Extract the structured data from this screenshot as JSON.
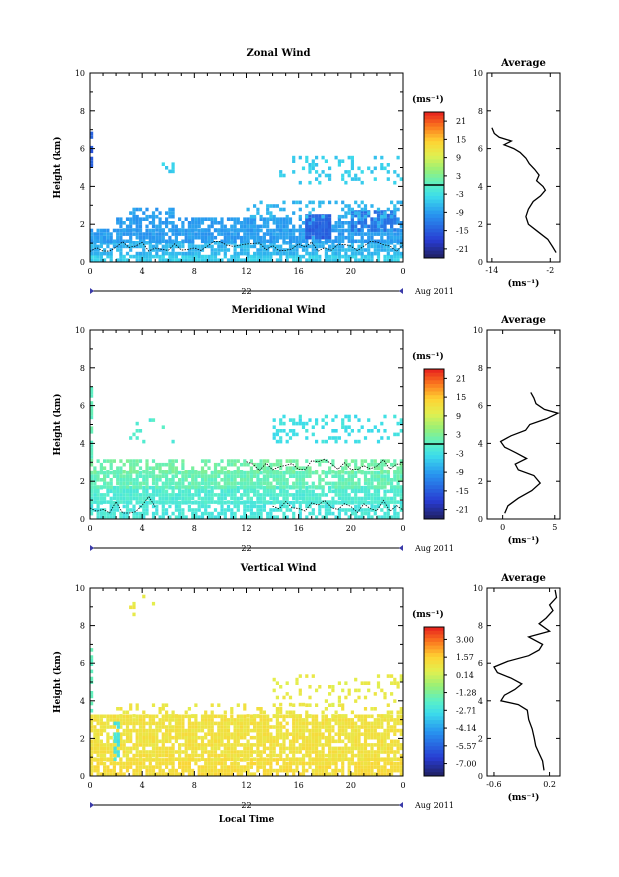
{
  "chart_data": [
    {
      "type": "heatmap",
      "title": "Zonal Wind",
      "ylabel": "Height (km)",
      "xticks": [
        "0",
        "4",
        "8",
        "12",
        "16",
        "20",
        "0"
      ],
      "yticks": [
        "0",
        "2",
        "4",
        "6",
        "8",
        "10"
      ],
      "xlim": [
        0,
        24
      ],
      "ylim": [
        0,
        10
      ],
      "date_label": "22",
      "date_suffix": "Aug 2011",
      "colorbar": {
        "unit": "(ms⁻¹)",
        "ticks": [
          "21",
          "15",
          "9",
          "3",
          "-3",
          "-9",
          "-15",
          "-21"
        ],
        "range": [
          -24,
          24
        ],
        "marker": 0
      },
      "layers": [
        {
          "t0": 0.0,
          "t1": 24.0,
          "h0": 0.0,
          "h1": 0.35,
          "v": -5,
          "density": 0.8
        },
        {
          "t0": 0.0,
          "t1": 24.0,
          "h0": 0.35,
          "h1": 1.0,
          "v": -7,
          "density": 0.75
        },
        {
          "t0": 0.0,
          "t1": 24.0,
          "h0": 1.0,
          "h1": 1.6,
          "v": -9,
          "density": 0.85
        },
        {
          "t0": 2.0,
          "t1": 24.0,
          "h0": 1.6,
          "h1": 2.3,
          "v": -9,
          "density": 0.7
        },
        {
          "t0": 3.0,
          "t1": 6.5,
          "h0": 2.3,
          "h1": 2.8,
          "v": -9,
          "density": 0.55
        },
        {
          "t0": 16.5,
          "t1": 18.5,
          "h0": 1.2,
          "h1": 2.4,
          "v": -15,
          "density": 0.9
        },
        {
          "t0": 20.0,
          "t1": 23.5,
          "h0": 1.6,
          "h1": 2.6,
          "v": -13,
          "density": 0.8
        },
        {
          "t0": 12.0,
          "t1": 24.0,
          "h0": 2.3,
          "h1": 3.1,
          "v": -7,
          "density": 0.3
        },
        {
          "t0": 14.5,
          "t1": 24.0,
          "h0": 4.1,
          "h1": 5.6,
          "v": -5,
          "density": 0.22
        },
        {
          "t0": 5.5,
          "t1": 6.5,
          "h0": 4.7,
          "h1": 5.1,
          "v": -5,
          "density": 0.5
        },
        {
          "t0": 0.0,
          "t1": 0.25,
          "h0": 5.0,
          "h1": 6.9,
          "v": -15,
          "density": 0.9
        }
      ],
      "average_profile": {
        "title": "Average",
        "xlabel": "(ms⁻¹)",
        "xticks": [
          "-14",
          "-2"
        ],
        "xlim": [
          -15,
          0
        ],
        "ylim": [
          0,
          10
        ],
        "yticks": [
          "0",
          "2",
          "4",
          "6",
          "8",
          "10"
        ],
        "points": [
          [
            -0.8,
            0.5
          ],
          [
            -1.5,
            0.8
          ],
          [
            -2.5,
            1.2
          ],
          [
            -4.5,
            1.6
          ],
          [
            -6.5,
            2.0
          ],
          [
            -7.0,
            2.4
          ],
          [
            -6.5,
            2.8
          ],
          [
            -5.5,
            3.2
          ],
          [
            -4.0,
            3.5
          ],
          [
            -3.0,
            3.8
          ],
          [
            -3.5,
            4.0
          ],
          [
            -4.8,
            4.3
          ],
          [
            -4.3,
            4.6
          ],
          [
            -5.2,
            4.9
          ],
          [
            -6.3,
            5.2
          ],
          [
            -7.0,
            5.5
          ],
          [
            -8.2,
            5.8
          ],
          [
            -9.5,
            6.0
          ],
          [
            -11.5,
            6.2
          ],
          [
            -10.0,
            6.4
          ],
          [
            -12.5,
            6.6
          ],
          [
            -13.5,
            6.8
          ],
          [
            -14.0,
            7.1
          ]
        ]
      }
    },
    {
      "type": "heatmap",
      "title": "Meridional Wind",
      "ylabel": "Height (km)",
      "xticks": [
        "0",
        "4",
        "8",
        "12",
        "16",
        "20",
        "0"
      ],
      "yticks": [
        "0",
        "2",
        "4",
        "6",
        "8",
        "10"
      ],
      "xlim": [
        0,
        24
      ],
      "ylim": [
        0,
        10
      ],
      "date_label": "22",
      "date_suffix": "Aug 2011",
      "colorbar": {
        "unit": "(ms⁻¹)",
        "ticks": [
          "21",
          "15",
          "9",
          "3",
          "-3",
          "-9",
          "-15",
          "-21"
        ],
        "range": [
          -24,
          24
        ],
        "marker": 0
      },
      "layers": [
        {
          "t0": 0.0,
          "t1": 24.0,
          "h0": 0.0,
          "h1": 0.8,
          "v": -2,
          "density": 0.65
        },
        {
          "t0": 0.0,
          "t1": 24.0,
          "h0": 0.8,
          "h1": 1.6,
          "v": -1,
          "density": 0.85
        },
        {
          "t0": 0.0,
          "t1": 24.0,
          "h0": 1.6,
          "h1": 2.4,
          "v": 1,
          "density": 0.8
        },
        {
          "t0": 0.0,
          "t1": 24.0,
          "h0": 2.4,
          "h1": 3.1,
          "v": 2,
          "density": 0.55
        },
        {
          "t0": 14.0,
          "t1": 24.0,
          "h0": 4.0,
          "h1": 5.4,
          "v": -3,
          "density": 0.25
        },
        {
          "t0": 2.0,
          "t1": 6.5,
          "h0": 4.0,
          "h1": 5.2,
          "v": -1,
          "density": 0.06
        },
        {
          "t0": 0.0,
          "t1": 0.25,
          "h0": 3.0,
          "h1": 7.0,
          "v": 1,
          "density": 0.6
        }
      ],
      "average_profile": {
        "title": "Average",
        "xlabel": "(ms⁻¹)",
        "xticks": [
          "0",
          "5"
        ],
        "xlim": [
          -1.5,
          5.5
        ],
        "ylim": [
          0,
          10
        ],
        "yticks": [
          "0",
          "2",
          "4",
          "6",
          "8",
          "10"
        ],
        "points": [
          [
            0.2,
            0.3
          ],
          [
            0.5,
            0.7
          ],
          [
            1.5,
            1.1
          ],
          [
            2.8,
            1.5
          ],
          [
            3.6,
            1.9
          ],
          [
            3.0,
            2.3
          ],
          [
            1.5,
            2.6
          ],
          [
            1.2,
            2.9
          ],
          [
            2.3,
            3.2
          ],
          [
            1.3,
            3.5
          ],
          [
            0.2,
            3.8
          ],
          [
            -0.2,
            4.1
          ],
          [
            0.8,
            4.4
          ],
          [
            2.2,
            4.7
          ],
          [
            2.6,
            5.0
          ],
          [
            4.2,
            5.3
          ],
          [
            5.3,
            5.6
          ],
          [
            4.0,
            5.8
          ],
          [
            3.2,
            6.1
          ],
          [
            3.0,
            6.4
          ],
          [
            2.7,
            6.7
          ]
        ]
      }
    },
    {
      "type": "heatmap",
      "title": "Vertical Wind",
      "ylabel": "Height (km)",
      "xlabel": "Local Time",
      "xticks": [
        "0",
        "4",
        "8",
        "12",
        "16",
        "20",
        "0"
      ],
      "yticks": [
        "0",
        "2",
        "4",
        "6",
        "8",
        "10"
      ],
      "xlim": [
        0,
        24
      ],
      "ylim": [
        0,
        10
      ],
      "date_label": "22",
      "date_suffix": "Aug 2011",
      "colorbar": {
        "unit": "(ms⁻¹)",
        "ticks": [
          "3.00",
          "1.57",
          "0.14",
          "-1.28",
          "-2.71",
          "-4.14",
          "-5.57",
          "-7.00"
        ],
        "range": [
          -8.0,
          4.0
        ]
      },
      "layers": [
        {
          "t0": 0.0,
          "t1": 24.0,
          "h0": 0.0,
          "h1": 0.8,
          "v": 1.2,
          "density": 0.8
        },
        {
          "t0": 0.0,
          "t1": 24.0,
          "h0": 0.8,
          "h1": 3.1,
          "v": 1.0,
          "density": 0.82
        },
        {
          "t0": 2.0,
          "t1": 24.0,
          "h0": 3.1,
          "h1": 3.7,
          "v": 0.8,
          "density": 0.25
        },
        {
          "t0": 14.0,
          "t1": 24.0,
          "h0": 3.7,
          "h1": 5.4,
          "v": 0.6,
          "density": 0.18
        },
        {
          "t0": 1.8,
          "t1": 2.1,
          "h0": 0.8,
          "h1": 2.8,
          "v": -2.6,
          "density": 0.7
        },
        {
          "t0": 0.0,
          "t1": 0.25,
          "h0": 3.0,
          "h1": 6.8,
          "v": -2.0,
          "density": 0.6
        },
        {
          "t0": 3.0,
          "t1": 5.0,
          "h0": 8.5,
          "h1": 9.8,
          "v": 0.8,
          "density": 0.08
        }
      ],
      "average_profile": {
        "title": "Average",
        "xlabel": "(ms⁻¹)",
        "xticks": [
          "-0.6",
          "0.2"
        ],
        "xlim": [
          -0.7,
          0.35
        ],
        "ylim": [
          0,
          10
        ],
        "yticks": [
          "0",
          "2",
          "4",
          "6",
          "8",
          "10"
        ],
        "points": [
          [
            0.12,
            0.3
          ],
          [
            0.1,
            0.8
          ],
          [
            0.05,
            1.2
          ],
          [
            0.0,
            1.6
          ],
          [
            -0.02,
            2.0
          ],
          [
            -0.05,
            2.5
          ],
          [
            -0.1,
            3.0
          ],
          [
            -0.12,
            3.5
          ],
          [
            -0.25,
            3.8
          ],
          [
            -0.5,
            4.0
          ],
          [
            -0.45,
            4.3
          ],
          [
            -0.3,
            4.6
          ],
          [
            -0.2,
            4.9
          ],
          [
            -0.35,
            5.2
          ],
          [
            -0.55,
            5.5
          ],
          [
            -0.6,
            5.8
          ],
          [
            -0.4,
            6.1
          ],
          [
            -0.1,
            6.4
          ],
          [
            0.05,
            6.7
          ],
          [
            0.1,
            7.0
          ],
          [
            -0.1,
            7.4
          ],
          [
            0.2,
            7.7
          ],
          [
            0.05,
            8.1
          ],
          [
            0.15,
            8.4
          ],
          [
            0.25,
            8.8
          ],
          [
            0.2,
            9.1
          ],
          [
            0.3,
            9.5
          ],
          [
            0.28,
            9.9
          ]
        ]
      }
    }
  ]
}
